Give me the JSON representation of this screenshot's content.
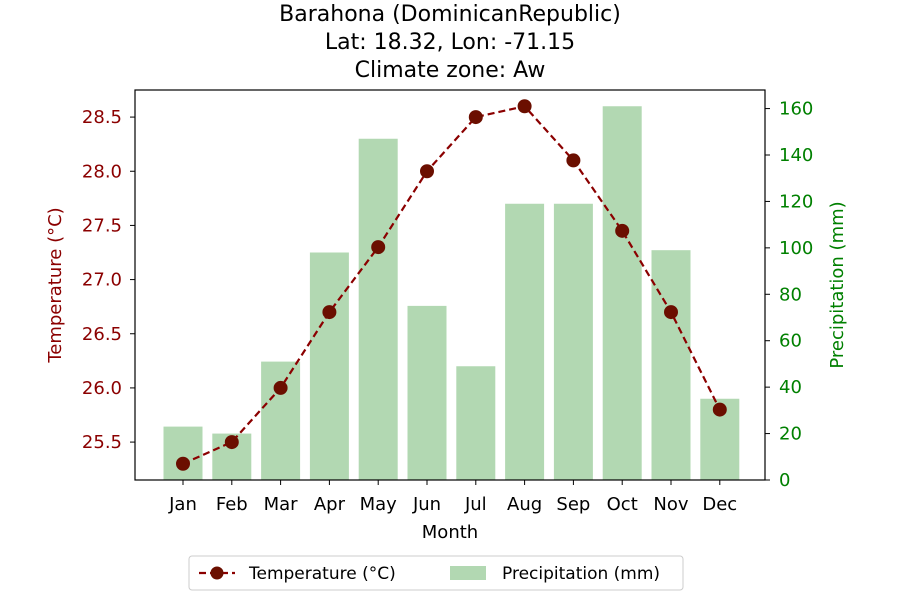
{
  "chart_data": {
    "type": "bar",
    "title_lines": [
      "Barahona (DominicanRepublic)",
      "Lat: 18.32, Lon: -71.15",
      "Climate zone: Aw"
    ],
    "categories": [
      "Jan",
      "Feb",
      "Mar",
      "Apr",
      "May",
      "Jun",
      "Jul",
      "Aug",
      "Sep",
      "Oct",
      "Nov",
      "Dec"
    ],
    "xlabel": "Month",
    "y_left": {
      "label": "Temperature (°C)",
      "range": [
        25.15,
        28.75
      ],
      "ticks": [
        25.5,
        26.0,
        26.5,
        27.0,
        27.5,
        28.0,
        28.5
      ],
      "tick_labels": [
        "25.5",
        "26.0",
        "26.5",
        "27.0",
        "27.5",
        "28.0",
        "28.5"
      ],
      "color": "#8b0000"
    },
    "y_right": {
      "label": "Precipitation (mm)",
      "range": [
        0,
        168
      ],
      "ticks": [
        0,
        20,
        40,
        60,
        80,
        100,
        120,
        140,
        160
      ],
      "tick_labels": [
        "0",
        "20",
        "40",
        "60",
        "80",
        "100",
        "120",
        "140",
        "160"
      ],
      "color": "#008000"
    },
    "series": [
      {
        "name": "Temperature (°C)",
        "type": "line",
        "axis": "left",
        "color": "#8b0000",
        "marker_color": "#6b0f00",
        "values": [
          25.3,
          25.5,
          26.0,
          26.7,
          27.3,
          28.0,
          28.5,
          28.6,
          28.1,
          27.45,
          26.7,
          25.8
        ]
      },
      {
        "name": "Precipitation (mm)",
        "type": "bar",
        "axis": "right",
        "color": "#b2d8b2",
        "values": [
          23,
          20,
          51,
          98,
          147,
          75,
          49,
          119,
          119,
          161,
          99,
          35
        ]
      }
    ],
    "legend_position": "bottom-center",
    "grid": false
  }
}
